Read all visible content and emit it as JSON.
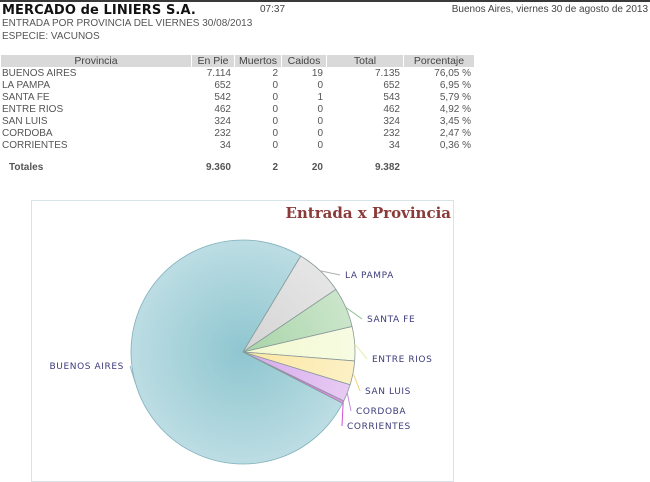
{
  "header": {
    "title": "MERCADO de LINIERS S.A.",
    "time": "07:37",
    "place_date": "Buenos Aires, viernes 30 de agosto de 2013",
    "subtitle": "ENTRADA POR PROVINCIA DEL VIERNES 30/08/2013",
    "especie": "ESPECIE: VACUNOS"
  },
  "table": {
    "columns": [
      "Provincia",
      "En Pie",
      "Muertos",
      "Caidos",
      "Total",
      "Porcentaje"
    ],
    "rows": [
      {
        "provincia": "BUENOS AIRES",
        "en_pie": "7.114",
        "muertos": "2",
        "caidos": "19",
        "total": "7.135",
        "porcentaje": "76,05 %"
      },
      {
        "provincia": "LA PAMPA",
        "en_pie": "652",
        "muertos": "0",
        "caidos": "0",
        "total": "652",
        "porcentaje": "6,95 %"
      },
      {
        "provincia": "SANTA FE",
        "en_pie": "542",
        "muertos": "0",
        "caidos": "1",
        "total": "543",
        "porcentaje": "5,79 %"
      },
      {
        "provincia": "ENTRE RIOS",
        "en_pie": "462",
        "muertos": "0",
        "caidos": "0",
        "total": "462",
        "porcentaje": "4,92 %"
      },
      {
        "provincia": "SAN LUIS",
        "en_pie": "324",
        "muertos": "0",
        "caidos": "0",
        "total": "324",
        "porcentaje": "3,45 %"
      },
      {
        "provincia": "CORDOBA",
        "en_pie": "232",
        "muertos": "0",
        "caidos": "0",
        "total": "232",
        "porcentaje": "2,47 %"
      },
      {
        "provincia": "CORRIENTES",
        "en_pie": "34",
        "muertos": "0",
        "caidos": "0",
        "total": "34",
        "porcentaje": "0,36 %"
      }
    ],
    "totals": {
      "label": "Totales",
      "en_pie": "9.360",
      "muertos": "2",
      "caidos": "20",
      "total": "9.382",
      "porcentaje": ""
    }
  },
  "chart_data": {
    "type": "pie",
    "title": "Entrada x Provincia",
    "categories": [
      "BUENOS AIRES",
      "LA PAMPA",
      "SANTA FE",
      "ENTRE RIOS",
      "SAN LUIS",
      "CORDOBA",
      "CORRIENTES"
    ],
    "values": [
      7135,
      652,
      543,
      462,
      324,
      232,
      34
    ],
    "percentages": [
      76.05,
      6.95,
      5.79,
      4.92,
      3.45,
      2.47,
      0.36
    ],
    "colors": [
      "#8fc6d0",
      "#d4d4d4",
      "#a8d4a8",
      "#f2f9cf",
      "#fbe7a0",
      "#d7a8ec",
      "#d050d8"
    ],
    "legend": "labels-outside-with-leader-lines"
  }
}
